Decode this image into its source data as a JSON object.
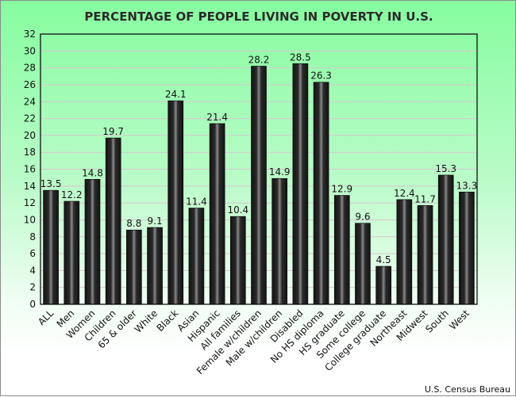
{
  "chart_data": {
    "type": "bar",
    "title": "PERCENTAGE OF PEOPLE LIVING IN POVERTY IN U.S.",
    "categories": [
      "ALL",
      "Men",
      "Women",
      "Children",
      "65 & older",
      "White",
      "Black",
      "Asian",
      "Hispanic",
      "All families",
      "Female w/children",
      "Male w/children",
      "Disabled",
      "No HS diploma",
      "HS graduate",
      "Some college",
      "College graduate",
      "Northeast",
      "Midwest",
      "South",
      "West"
    ],
    "values": [
      13.5,
      12.2,
      14.8,
      19.7,
      8.8,
      9.1,
      24.1,
      11.4,
      21.4,
      10.4,
      28.2,
      14.9,
      28.5,
      26.3,
      12.9,
      9.6,
      4.5,
      12.4,
      11.7,
      15.3,
      13.3
    ],
    "xlabel": "",
    "ylabel": "",
    "ylim": [
      0,
      32
    ],
    "yticks": [
      0,
      2,
      4,
      6,
      8,
      10,
      12,
      14,
      16,
      18,
      20,
      22,
      24,
      26,
      28,
      30,
      32
    ],
    "grid": true,
    "data_labels": true,
    "source": "U.S. Census Bureau",
    "colors": {
      "bar": "#1c1c1c",
      "bar_highlight": "#8a8a8a",
      "grid": "#d6c6cf",
      "background_top": "#86fd9f",
      "background_bottom": "#ffffff"
    }
  }
}
